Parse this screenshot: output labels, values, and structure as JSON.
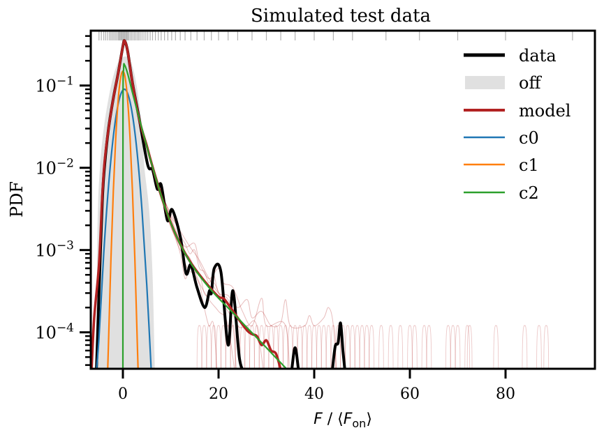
{
  "chart_data": {
    "type": "line",
    "title": "Simulated test data",
    "xlabel": {
      "var": "F",
      "sep": " / ⟨",
      "var2": "F",
      "sub": "on",
      "close": "⟩"
    },
    "ylabel": "PDF",
    "xlim": [
      -6.7,
      98.7
    ],
    "ylim": [
      3.5e-05,
      0.46
    ],
    "yscale": "log",
    "grid": false,
    "legend_position": "top-right",
    "x_ticks": [
      0,
      20,
      40,
      60,
      80
    ],
    "x_tick_labels": [
      "0",
      "20",
      "40",
      "60",
      "80"
    ],
    "y_ticks": [
      0.1,
      0.01,
      0.001,
      0.0001
    ],
    "y_tick_labels": [
      {
        "base": "10",
        "exp": "−1"
      },
      {
        "base": "10",
        "exp": "−2"
      },
      {
        "base": "10",
        "exp": "−3"
      },
      {
        "base": "10",
        "exp": "−4"
      }
    ],
    "colors": {
      "data": "#000000",
      "off": "#e0e0e0",
      "model": "#b22222",
      "c0": "#1f77b4",
      "c1": "#ff7f0e",
      "c2": "#2ca02c",
      "samples": "#b22222"
    },
    "legend": [
      "data",
      "off",
      "model",
      "c0",
      "c1",
      "c2"
    ],
    "series": {
      "off": [
        [
          -5.6,
          3e-05
        ],
        [
          -5.3,
          0.002
        ],
        [
          -4.8,
          0.01
        ],
        [
          -4,
          0.03
        ],
        [
          -3,
          0.07
        ],
        [
          -2,
          0.13
        ],
        [
          -1,
          0.19
        ],
        [
          0,
          0.22
        ],
        [
          0.5,
          0.225
        ],
        [
          1,
          0.22
        ],
        [
          2,
          0.17
        ],
        [
          3,
          0.09
        ],
        [
          4,
          0.03
        ],
        [
          4.5,
          0.01
        ],
        [
          5.5,
          0.003
        ],
        [
          6.2,
          0.0005
        ],
        [
          6.7,
          3e-05
        ]
      ],
      "c0": [
        [
          -6,
          4.8e-06
        ],
        [
          -5,
          8.5e-05
        ],
        [
          -4,
          0.00092
        ],
        [
          -3,
          0.006
        ],
        [
          -2,
          0.024
        ],
        [
          -1,
          0.059
        ],
        [
          0,
          0.088
        ],
        [
          1,
          0.08
        ],
        [
          2,
          0.044
        ],
        [
          3,
          0.0148
        ],
        [
          4,
          0.003
        ],
        [
          5,
          0.00037
        ],
        [
          6,
          2.8e-05
        ]
      ],
      "c1": [
        [
          -3.3,
          2e-05
        ],
        [
          -3,
          7.8e-05
        ],
        [
          -2.5,
          0.00078
        ],
        [
          -2,
          0.0052
        ],
        [
          -1.5,
          0.0227
        ],
        [
          -1,
          0.065
        ],
        [
          -0.5,
          0.122
        ],
        [
          0,
          0.15
        ],
        [
          0.5,
          0.122
        ],
        [
          1,
          0.065
        ],
        [
          1.5,
          0.0227
        ],
        [
          2,
          0.0052
        ],
        [
          2.5,
          0.00078
        ],
        [
          3,
          7.8e-05
        ],
        [
          3.3,
          2e-05
        ]
      ],
      "c2": [
        [
          0,
          1e-05
        ],
        [
          0.02,
          0.05
        ],
        [
          0.15,
          0.16
        ],
        [
          0.35,
          0.178
        ],
        [
          1,
          0.139
        ],
        [
          2,
          0.082
        ],
        [
          3,
          0.049
        ],
        [
          4,
          0.0296
        ],
        [
          5,
          0.0181
        ],
        [
          6,
          0.0112
        ],
        [
          8,
          0.0046
        ],
        [
          10,
          0.00215
        ],
        [
          12,
          0.00117
        ],
        [
          14,
          0.00072
        ],
        [
          16,
          0.00049
        ],
        [
          18,
          0.00035
        ],
        [
          20,
          0.00026
        ],
        [
          22,
          0.000198
        ],
        [
          24,
          0.00015
        ],
        [
          26,
          0.000113
        ],
        [
          28,
          8.6e-05
        ],
        [
          30,
          6.5e-05
        ],
        [
          32,
          4.9e-05
        ],
        [
          34,
          3.7e-05
        ],
        [
          35,
          3.2e-05
        ]
      ],
      "model": [
        [
          -6.6,
          3e-05
        ],
        [
          -6,
          0.00015
        ],
        [
          -5,
          0.00066
        ],
        [
          -4.3,
          0.0047
        ],
        [
          -3.8,
          0.0123
        ],
        [
          -3,
          0.03
        ],
        [
          -2,
          0.07
        ],
        [
          -1,
          0.14
        ],
        [
          0,
          0.3
        ],
        [
          0.35,
          0.35
        ],
        [
          1,
          0.26
        ],
        [
          2,
          0.108
        ],
        [
          3.5,
          0.037
        ],
        [
          5,
          0.0185
        ],
        [
          6,
          0.0113
        ],
        [
          8,
          0.0046
        ],
        [
          10,
          0.00216
        ],
        [
          12,
          0.00118
        ],
        [
          14,
          0.00073
        ],
        [
          16,
          0.0005
        ],
        [
          18,
          0.00036
        ],
        [
          20,
          0.00027
        ],
        [
          21,
          0.00026
        ],
        [
          22,
          0.00022
        ],
        [
          24,
          0.00015
        ],
        [
          26,
          0.000105
        ],
        [
          27,
          9.5e-05
        ],
        [
          28,
          9e-05
        ],
        [
          29,
          7e-05
        ],
        [
          30,
          8e-05
        ],
        [
          31,
          6e-05
        ],
        [
          32,
          5.5e-05
        ],
        [
          33,
          3.5e-05
        ],
        [
          34,
          2e-05
        ]
      ],
      "data": [
        [
          -6,
          1e-05
        ],
        [
          -5.5,
          4e-05
        ],
        [
          -5,
          0.0003
        ],
        [
          -4.3,
          0.004
        ],
        [
          -3.8,
          0.011
        ],
        [
          -3,
          0.03
        ],
        [
          -2,
          0.07
        ],
        [
          -1,
          0.14
        ],
        [
          0,
          0.3
        ],
        [
          0.35,
          0.35
        ],
        [
          1,
          0.26
        ],
        [
          2,
          0.108
        ],
        [
          3.5,
          0.037
        ],
        [
          5.2,
          0.0108
        ],
        [
          6.2,
          0.0095
        ],
        [
          7.2,
          0.0055
        ],
        [
          8,
          0.0062
        ],
        [
          9.3,
          0.0023
        ],
        [
          10.3,
          0.0031
        ],
        [
          12,
          0.00145
        ],
        [
          13.2,
          0.00052
        ],
        [
          14.2,
          0.00066
        ],
        [
          15.5,
          0.00035
        ],
        [
          17.1,
          0.0002
        ],
        [
          18.1,
          0.00032
        ],
        [
          18.5,
          0.0003
        ],
        [
          19.1,
          0.0006
        ],
        [
          20.5,
          0.00054
        ],
        [
          22,
          7e-05
        ],
        [
          23,
          0.00032
        ],
        [
          24.4,
          4.7e-05
        ],
        [
          25.8,
          3e-05
        ],
        [
          26.5,
          1e-05
        ],
        [
          34.6,
          1e-05
        ],
        [
          35.3,
          3.5e-05
        ],
        [
          36,
          6.5e-05
        ],
        [
          36.7,
          3.5e-05
        ],
        [
          37.3,
          1e-05
        ],
        [
          43.2,
          1e-05
        ],
        [
          43.8,
          3.5e-05
        ],
        [
          44.4,
          6.8e-05
        ],
        [
          45,
          7.5e-05
        ],
        [
          45.5,
          0.00013
        ],
        [
          46,
          6e-05
        ],
        [
          46.4,
          3.5e-05
        ],
        [
          46.9,
          1e-05
        ]
      ]
    },
    "posterior_samples": [
      [
        [
          6,
          0.012
        ],
        [
          8,
          0.0052
        ],
        [
          10,
          0.0026
        ],
        [
          11,
          0.0021
        ],
        [
          12,
          0.0015
        ],
        [
          13,
          0.0012
        ],
        [
          14,
          0.0009
        ],
        [
          15,
          0.001
        ],
        [
          16,
          0.0006
        ],
        [
          17,
          0.00055
        ],
        [
          18,
          0.0004
        ],
        [
          19,
          0.0005
        ],
        [
          20,
          0.0003
        ],
        [
          22,
          0.00025
        ],
        [
          24,
          0.00012
        ],
        [
          26,
          0.00012
        ],
        [
          28,
          0.00012
        ],
        [
          30,
          1e-05
        ]
      ],
      [
        [
          6,
          0.01
        ],
        [
          8,
          0.0042
        ],
        [
          10,
          0.0019
        ],
        [
          12,
          0.0011
        ],
        [
          13,
          0.0007
        ],
        [
          14,
          0.00055
        ],
        [
          16,
          0.0005
        ],
        [
          17,
          0.0003
        ],
        [
          18,
          0.00028
        ],
        [
          19,
          0.0004
        ],
        [
          21,
          0.00022
        ],
        [
          23,
          0.00012
        ],
        [
          24,
          1e-05
        ]
      ],
      [
        [
          7,
          0.0075
        ],
        [
          9,
          0.0036
        ],
        [
          11,
          0.0018
        ],
        [
          13,
          0.0011
        ],
        [
          15,
          0.0012
        ],
        [
          16,
          0.0007
        ],
        [
          18,
          0.00045
        ],
        [
          20,
          0.0006
        ],
        [
          21,
          0.0004
        ],
        [
          23,
          0.00035
        ],
        [
          25,
          0.00018
        ],
        [
          27,
          0.00012
        ],
        [
          29,
          0.00026
        ],
        [
          30,
          0.00012
        ],
        [
          34,
          0.00012
        ],
        [
          35,
          1e-05
        ]
      ],
      [
        [
          6,
          0.011
        ],
        [
          8,
          0.0045
        ],
        [
          10,
          0.0022
        ],
        [
          12,
          0.0009
        ],
        [
          13,
          0.00045
        ],
        [
          14,
          0.0006
        ],
        [
          16,
          0.00038
        ],
        [
          17,
          0.0002
        ],
        [
          18,
          0.00012
        ],
        [
          19,
          0.00012
        ],
        [
          20,
          1e-05
        ]
      ],
      [
        [
          8,
          0.0048
        ],
        [
          10,
          0.0028
        ],
        [
          12,
          0.0017
        ],
        [
          14,
          0.0011
        ],
        [
          16,
          0.00075
        ],
        [
          18,
          0.00045
        ],
        [
          20,
          0.0003
        ],
        [
          22,
          0.00028
        ],
        [
          24,
          0.0002
        ],
        [
          26,
          0.00025
        ],
        [
          27,
          0.00015
        ],
        [
          29,
          0.00018
        ],
        [
          31,
          0.00012
        ],
        [
          33,
          0.00013
        ],
        [
          34,
          0.00025
        ],
        [
          35,
          0.00012
        ],
        [
          38,
          0.00012
        ],
        [
          39,
          0.00016
        ],
        [
          40,
          0.00012
        ],
        [
          42,
          0.00015
        ],
        [
          43,
          0.0002
        ],
        [
          44,
          0.00012
        ],
        [
          45,
          1e-05
        ]
      ],
      [
        [
          10,
          0.002
        ],
        [
          12,
          0.001
        ],
        [
          14,
          0.0008
        ],
        [
          16,
          0.0004
        ],
        [
          18,
          0.00025
        ],
        [
          20,
          0.00018
        ],
        [
          22,
          0.00012
        ],
        [
          24,
          1e-05
        ]
      ]
    ],
    "sample_spike_x": [
      16,
      17,
      18,
      19,
      20,
      21,
      22,
      23,
      24,
      25,
      26,
      27,
      28,
      29,
      30,
      31,
      32,
      33,
      34,
      35,
      36,
      37,
      38,
      39,
      40,
      41,
      42,
      43,
      44,
      45,
      46,
      47,
      48,
      49,
      50,
      51,
      52,
      54,
      56,
      58,
      60,
      61,
      63,
      64,
      68,
      69,
      70,
      72,
      72.5,
      78,
      84,
      87,
      88.5
    ],
    "sample_spike_height": 0.00012,
    "rug_x": [
      -5,
      -4.5,
      -4,
      -3.6,
      -3.2,
      -2.8,
      -2.5,
      -2.2,
      -1.9,
      -1.6,
      -1.3,
      -1,
      -0.8,
      -0.6,
      -0.4,
      -0.2,
      0,
      0.2,
      0.4,
      0.6,
      0.8,
      1,
      1.2,
      1.5,
      1.8,
      2.1,
      2.4,
      2.7,
      3,
      3.3,
      3.6,
      4,
      4.4,
      4.8,
      5.2,
      5.7,
      6.2,
      6.8,
      7.4,
      8,
      8.7,
      9.4,
      10.2,
      11,
      12,
      13,
      14.2,
      15.5,
      17,
      18.5,
      20,
      22,
      24,
      27,
      30,
      33,
      36,
      40,
      44,
      48,
      55,
      62,
      70,
      80,
      94
    ]
  }
}
